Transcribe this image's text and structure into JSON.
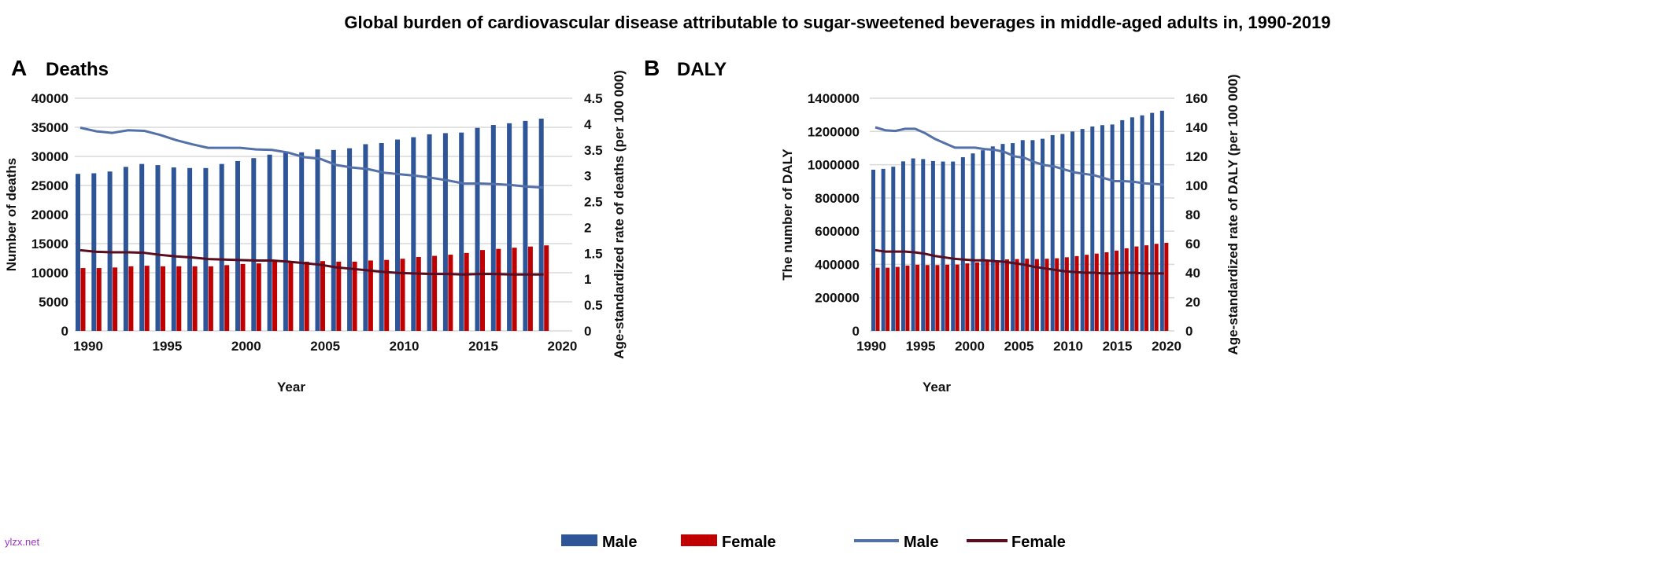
{
  "title": "Global burden of cardiovascular disease attributable to sugar-sweetened beverages in middle-aged adults in, 1990-2019",
  "watermark": "ylzx.net",
  "colors": {
    "male_bar": "#2e5597",
    "female_bar": "#c00000",
    "male_line": "#5470a8",
    "female_line": "#5a0d1e",
    "grid": "#d9d9d9"
  },
  "legend": [
    "Male",
    "Female",
    "Male",
    "Female"
  ],
  "legend_placement": "bottom",
  "chart_data": [
    {
      "type": "bar+line",
      "panel_letter": "A",
      "title": "Deaths",
      "xlabel": "Year",
      "ylabel": "Number of deaths",
      "y2label": "Age-standardized rate of deaths (per 100 000)",
      "xlim": [
        1990,
        2020
      ],
      "xticks": [
        "1990",
        "1995",
        "2000",
        "2005",
        "2010",
        "2015",
        "2020"
      ],
      "ylim": [
        0,
        40000
      ],
      "yticks": [
        "0",
        "5000",
        "10000",
        "15000",
        "20000",
        "25000",
        "30000",
        "35000",
        "40000"
      ],
      "y2lim": [
        0,
        4.5
      ],
      "y2ticks": [
        "0",
        "0.5",
        "1",
        "1.5",
        "2",
        "2.5",
        "3",
        "3.5",
        "4",
        "4.5"
      ],
      "grid": true,
      "x": [
        1990,
        1991,
        1992,
        1993,
        1994,
        1995,
        1996,
        1997,
        1998,
        1999,
        2000,
        2001,
        2002,
        2003,
        2004,
        2005,
        2006,
        2007,
        2008,
        2009,
        2010,
        2011,
        2012,
        2013,
        2014,
        2015,
        2016,
        2017,
        2018,
        2019
      ],
      "series": [
        {
          "name": "Male",
          "kind": "bar",
          "axis": "left",
          "values": [
            27000,
            27100,
            27400,
            28200,
            28700,
            28500,
            28100,
            28000,
            28000,
            28700,
            29200,
            29700,
            30300,
            30600,
            30700,
            31200,
            31100,
            31400,
            32100,
            32300,
            32900,
            33300,
            33800,
            34000,
            34100,
            34900,
            35400,
            35700,
            36100,
            36500
          ]
        },
        {
          "name": "Female",
          "kind": "bar",
          "axis": "left",
          "values": [
            10800,
            10800,
            10900,
            11100,
            11200,
            11100,
            11100,
            11100,
            11100,
            11300,
            11500,
            11600,
            11900,
            11900,
            11900,
            12000,
            11900,
            11900,
            12100,
            12200,
            12400,
            12700,
            12900,
            13100,
            13400,
            13900,
            14100,
            14300,
            14500,
            14700
          ]
        },
        {
          "name": "Male",
          "kind": "line",
          "axis": "right",
          "values": [
            3.93,
            3.86,
            3.83,
            3.88,
            3.87,
            3.79,
            3.69,
            3.61,
            3.54,
            3.54,
            3.54,
            3.51,
            3.5,
            3.45,
            3.36,
            3.33,
            3.21,
            3.16,
            3.13,
            3.06,
            3.03,
            3.0,
            2.96,
            2.91,
            2.85,
            2.85,
            2.84,
            2.82,
            2.79,
            2.77
          ]
        },
        {
          "name": "Female",
          "kind": "line",
          "axis": "right",
          "values": [
            1.56,
            1.53,
            1.52,
            1.52,
            1.51,
            1.47,
            1.44,
            1.42,
            1.39,
            1.38,
            1.37,
            1.36,
            1.36,
            1.34,
            1.31,
            1.28,
            1.23,
            1.2,
            1.17,
            1.14,
            1.12,
            1.11,
            1.1,
            1.1,
            1.09,
            1.1,
            1.1,
            1.09,
            1.09,
            1.09
          ]
        }
      ]
    },
    {
      "type": "bar+line",
      "panel_letter": "B",
      "title": "DALY",
      "xlabel": "Year",
      "ylabel": "The number of DALY",
      "y2label": "Age-standardized rate of DALY (per 100 000)",
      "xlim": [
        1990,
        2020
      ],
      "xticks": [
        "1990",
        "1995",
        "2000",
        "2005",
        "2010",
        "2015",
        "2020"
      ],
      "ylim": [
        0,
        1400000
      ],
      "yticks": [
        "0",
        "200000",
        "400000",
        "600000",
        "800000",
        "1000000",
        "1200000",
        "1400000"
      ],
      "y2lim": [
        0,
        160
      ],
      "y2ticks": [
        "0",
        "20",
        "40",
        "60",
        "80",
        "100",
        "120",
        "140",
        "160"
      ],
      "grid": true,
      "x": [
        1990,
        1991,
        1992,
        1993,
        1994,
        1995,
        1996,
        1997,
        1998,
        1999,
        2000,
        2001,
        2002,
        2003,
        2004,
        2005,
        2006,
        2007,
        2008,
        2009,
        2010,
        2011,
        2012,
        2013,
        2014,
        2015,
        2016,
        2017,
        2018,
        2019
      ],
      "series": [
        {
          "name": "Male",
          "kind": "bar",
          "axis": "left",
          "values": [
            970000,
            975000,
            988000,
            1020000,
            1038000,
            1034000,
            1022000,
            1019000,
            1019000,
            1045000,
            1068000,
            1087000,
            1110000,
            1125000,
            1130000,
            1148000,
            1148000,
            1156000,
            1178000,
            1185000,
            1200000,
            1215000,
            1230000,
            1238000,
            1242000,
            1268000,
            1285000,
            1297000,
            1312000,
            1325000
          ]
        },
        {
          "name": "Female",
          "kind": "bar",
          "axis": "left",
          "values": [
            380000,
            380000,
            385000,
            393000,
            398000,
            396000,
            396000,
            398000,
            399000,
            406000,
            412000,
            418000,
            423000,
            430000,
            432000,
            434000,
            432000,
            434000,
            437000,
            443000,
            450000,
            458000,
            465000,
            473000,
            483000,
            497000,
            508000,
            515000,
            524000,
            530000
          ]
        },
        {
          "name": "Male",
          "kind": "line",
          "axis": "right",
          "values": [
            140,
            138,
            137.5,
            139,
            139,
            136,
            132,
            129,
            126,
            126,
            126,
            125,
            124.5,
            123,
            120,
            119,
            116,
            114,
            113,
            111,
            109,
            108,
            107,
            105,
            103,
            103,
            102.5,
            101.5,
            101,
            100.5
          ]
        },
        {
          "name": "Female",
          "kind": "line",
          "axis": "right",
          "values": [
            55.5,
            54.5,
            54.5,
            54.5,
            54,
            53,
            51.5,
            50.5,
            49.5,
            49,
            48.5,
            48.5,
            48,
            47.5,
            46.5,
            45.5,
            44,
            43,
            42,
            41,
            40.5,
            40,
            40,
            39.5,
            39.5,
            40,
            40,
            39.5,
            39.5,
            39.5
          ]
        }
      ]
    }
  ]
}
